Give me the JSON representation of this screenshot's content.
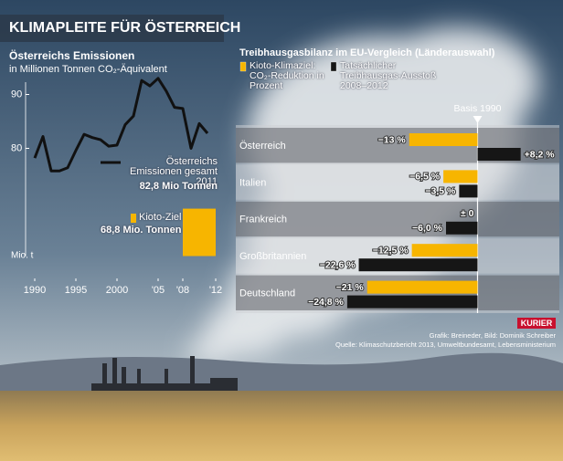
{
  "header": {
    "title": "KLIMAPLEITE FÜR ÖSTERREICH"
  },
  "chart_data": [
    {
      "type": "line",
      "title": "Österreichs Emissionen",
      "subtitle": "in Millionen Tonnen CO₂-Äquivalent",
      "y_label": "Mio. t",
      "x": [
        1990,
        1991,
        1992,
        1993,
        1994,
        1995,
        1996,
        1997,
        1998,
        1999,
        2000,
        2001,
        2002,
        2003,
        2004,
        2005,
        2006,
        2007,
        2008,
        2009,
        2010,
        2011
      ],
      "series": [
        {
          "name": "Österreichs Emissionen gesamt 2011",
          "color": "#111111",
          "values": [
            78.2,
            82.2,
            75.8,
            75.8,
            76.4,
            79.6,
            82.6,
            82.0,
            81.6,
            80.4,
            80.6,
            84.4,
            86.0,
            92.6,
            91.6,
            93.0,
            90.6,
            87.6,
            87.4,
            80.0,
            84.6,
            82.8
          ],
          "value_labels": [
            null,
            null,
            null,
            null,
            null,
            null,
            null,
            null,
            null,
            null,
            null,
            null,
            null,
            null,
            null,
            null,
            null,
            null,
            null,
            null,
            null,
            "82,8 Mio Tonnen"
          ]
        }
      ],
      "kioto_goal": {
        "name": "Kioto-Ziel",
        "color": "#f7b500",
        "value": 68.8,
        "value_label": "68,8 Mio. Tonnen",
        "x_range": [
          2008,
          2012
        ]
      },
      "xlim": [
        1990,
        2012
      ],
      "xticks": [
        1990,
        1995,
        2000,
        {
          "value": 2005,
          "label": "'05"
        },
        {
          "value": 2008,
          "label": "'08"
        },
        {
          "value": 2012,
          "label": "'12"
        }
      ],
      "ylim": [
        60,
        95
      ],
      "yticks": [
        80,
        90
      ]
    },
    {
      "type": "hbar",
      "title": "Treibhausgasbilanz im EU-Vergleich (Länderauswahl)",
      "reference_label": "Basis 1990",
      "categories": [
        "Österreich",
        "Italien",
        "Frankreich",
        "Großbritannien",
        "Deutschland"
      ],
      "series": [
        {
          "name": "Kioto-Klimaziel: CO₂-Reduktion in Prozent",
          "color": "#f7b500",
          "values": [
            -13,
            -6.5,
            0,
            -12.5,
            -21
          ],
          "value_labels": [
            "−13 %",
            "−6,5 %",
            "± 0",
            "−12,5 %",
            "−21 %"
          ]
        },
        {
          "name": "Tatsächlicher Treibhausgas-Ausstoß 2008–2012",
          "color": "#161616",
          "values": [
            8.2,
            -3.5,
            -6.0,
            -22.6,
            -24.8
          ],
          "value_labels": [
            "+8,2 %",
            "−3,5 %",
            "−6,0 %",
            "−22,6 %",
            "−24,8 %"
          ]
        }
      ],
      "xlim": [
        -26,
        10
      ]
    }
  ],
  "footer": {
    "brand": "KURIER",
    "credit": "Grafik: Breineder, Bild: Dominik Schreiber",
    "source": "Quelle: Klimaschutzbericht 2013, Umweltbundesamt, Lebensministerium"
  }
}
